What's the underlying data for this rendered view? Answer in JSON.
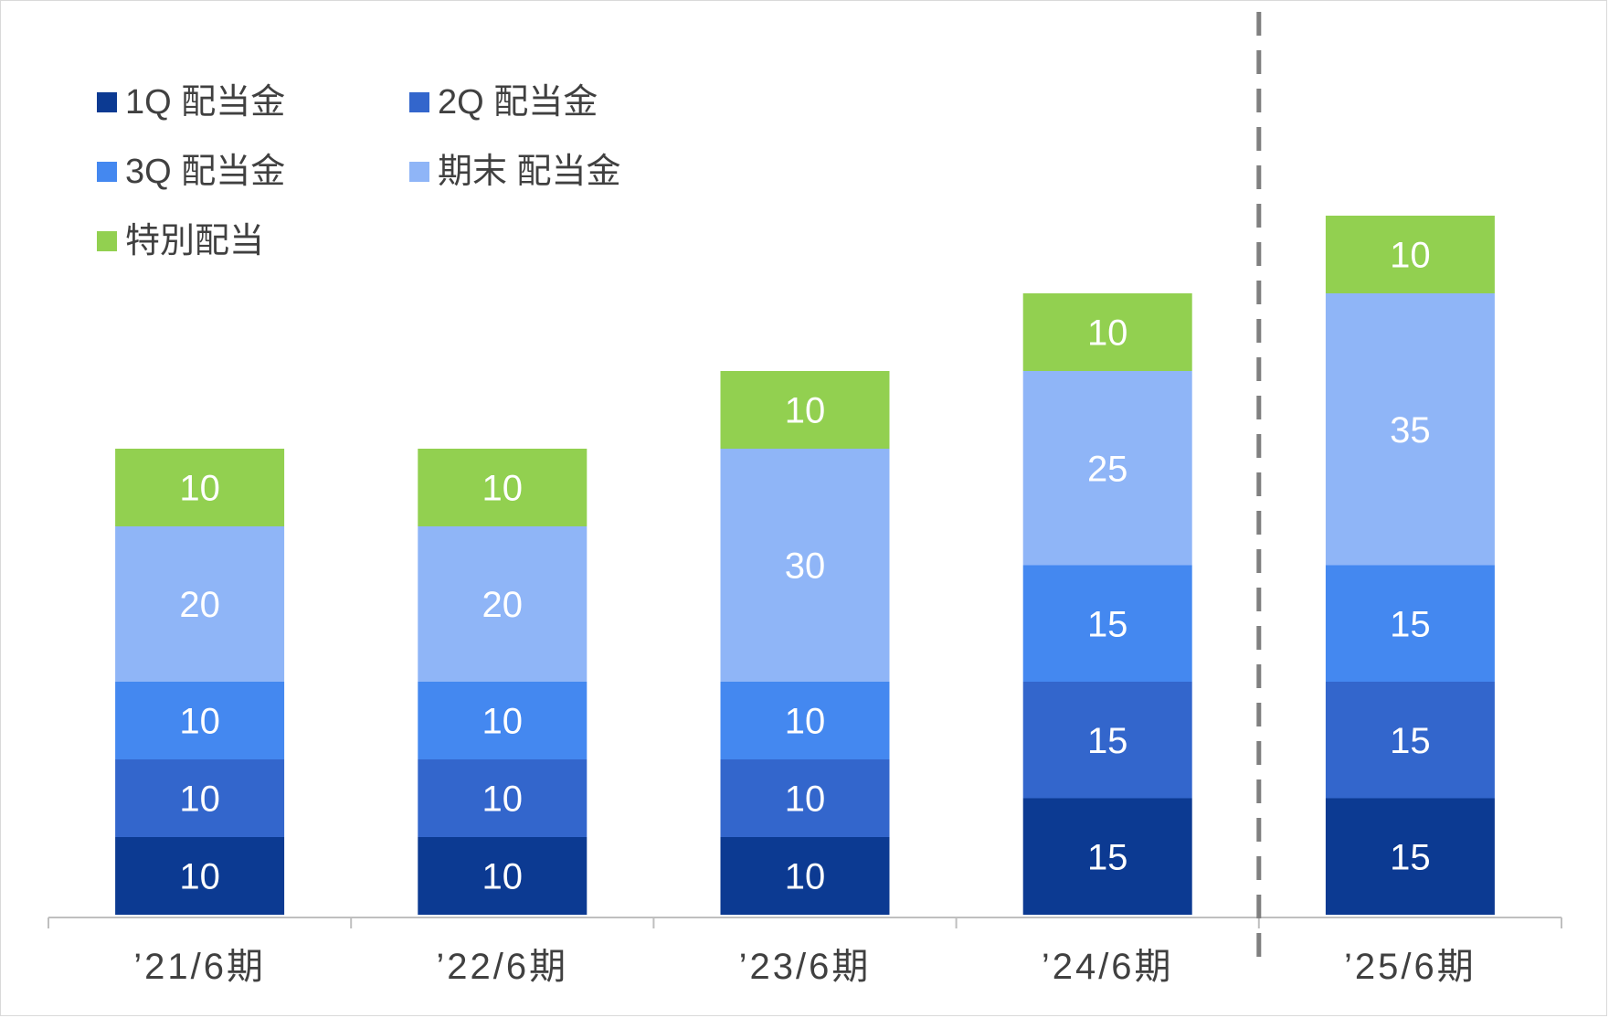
{
  "chart_data": {
    "type": "bar",
    "stacked": true,
    "categories": [
      "’21/6期",
      "’22/6期",
      "’23/6期",
      "’24/6期",
      "’25/6期"
    ],
    "series": [
      {
        "name": "1Q 配当金",
        "color": "#0c3a92",
        "values": [
          10,
          10,
          10,
          15,
          15
        ]
      },
      {
        "name": "2Q 配当金",
        "color": "#3366cc",
        "values": [
          10,
          10,
          10,
          15,
          15
        ]
      },
      {
        "name": "3Q 配当金",
        "color": "#4488f0",
        "values": [
          10,
          10,
          10,
          15,
          15
        ]
      },
      {
        "name": "期末 配当金",
        "color": "#8fb5f7",
        "values": [
          20,
          20,
          30,
          25,
          35
        ]
      },
      {
        "name": "特別配当",
        "color": "#92d050",
        "values": [
          10,
          10,
          10,
          10,
          10
        ]
      }
    ],
    "ylim": [
      0,
      105
    ],
    "grid": false,
    "legend_position": "top-left",
    "divider_before_category": 4
  }
}
